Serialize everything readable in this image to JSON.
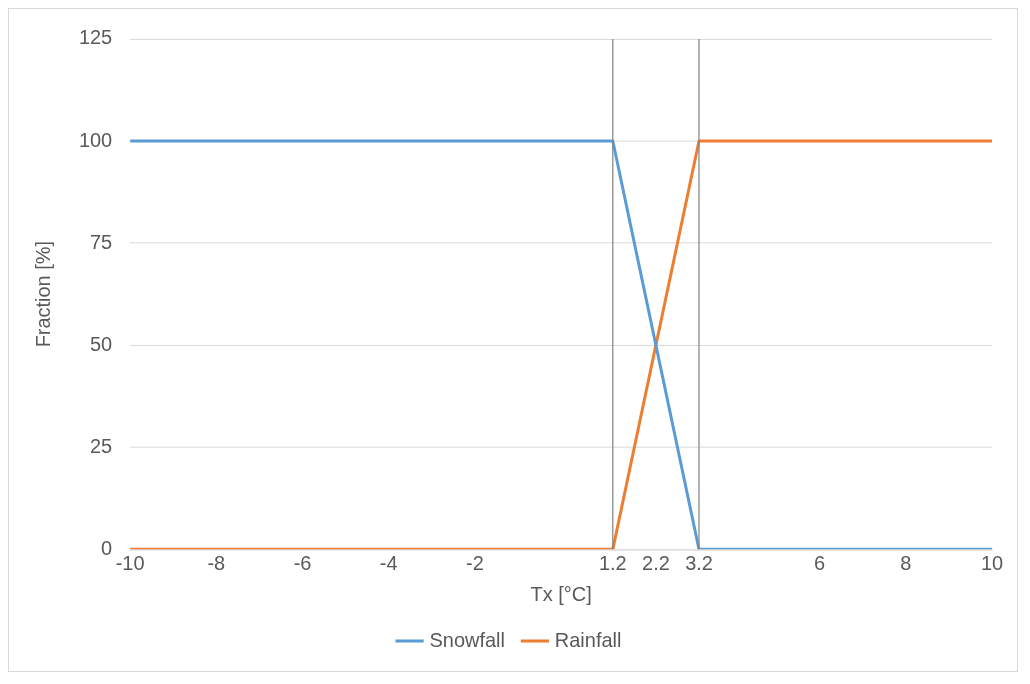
{
  "chart_data": {
    "type": "line",
    "xlabel": "Tx [°C]",
    "ylabel": "Fraction [%]",
    "x": [
      -10,
      1.2,
      3.2,
      10
    ],
    "series": [
      {
        "name": "Snowfall",
        "color": "#5b9bd5",
        "values": [
          100,
          100,
          0,
          0
        ]
      },
      {
        "name": "Rainfall",
        "color": "#ed7d31",
        "values": [
          0,
          0,
          100,
          100
        ]
      }
    ],
    "xlim": [
      -10,
      10
    ],
    "xticks": [
      -10,
      -8,
      -6,
      -4,
      -2,
      1.2,
      2.2,
      3.2,
      6,
      8,
      10
    ],
    "ylim": [
      0,
      125
    ],
    "yticks": [
      0,
      25,
      50,
      75,
      100,
      125
    ],
    "ref_lines": [
      {
        "axis": "x",
        "value": 1.2,
        "color": "#808080"
      },
      {
        "axis": "x",
        "value": 3.2,
        "color": "#808080"
      }
    ],
    "grid": "y",
    "legend": "bottom",
    "marker": "none",
    "line_style": "solid"
  }
}
